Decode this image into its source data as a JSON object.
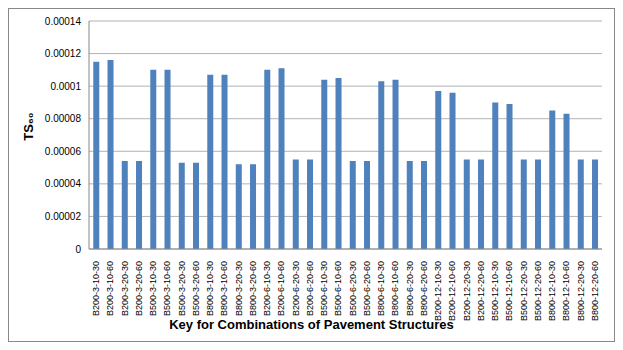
{
  "chart_data": {
    "type": "bar",
    "x_label": "Key for Combinations of Pavement Structures",
    "y_label": "TS₆₀",
    "categories": [
      "B200-3-10-30",
      "B200-3-10-60",
      "B200-3-20-30",
      "B200-3-20-60",
      "B500-3-10-30",
      "B500-3-10-60",
      "B500-3-20-30",
      "B500-3-20-60",
      "B800-3-10-30",
      "B800-3-10-60",
      "B800-3-20-30",
      "B800-3-20-60",
      "B200-6-10-30",
      "B200-6-10-60",
      "B200-6-20-30",
      "B200-6-20-60",
      "B500-6-10-30",
      "B500-6-10-60",
      "B500-6-20-30",
      "B500-6-20-60",
      "B800-6-10-30",
      "B800-6-10-60",
      "B800-6-20-30",
      "B800-6-20-60",
      "B200-12-10-30",
      "B200-12-10-60",
      "B200-12-20-30",
      "B200-12-20-60",
      "B500-12-10-30",
      "B500-12-10-60",
      "B500-12-20-30",
      "B500-12-20-60",
      "B800-12-10-30",
      "B800-12-10-60",
      "B800-12-20-30",
      "B800-12-20-60"
    ],
    "values": [
      0.000115,
      0.000116,
      5.4e-05,
      5.4e-05,
      0.00011,
      0.00011,
      5.3e-05,
      5.3e-05,
      0.000107,
      0.000107,
      5.2e-05,
      5.2e-05,
      0.00011,
      0.000111,
      5.5e-05,
      5.5e-05,
      0.000104,
      0.000105,
      5.4e-05,
      5.4e-05,
      0.000103,
      0.000104,
      5.4e-05,
      5.4e-05,
      9.7e-05,
      9.6e-05,
      5.5e-05,
      5.5e-05,
      9e-05,
      8.9e-05,
      5.5e-05,
      5.5e-05,
      8.5e-05,
      8.3e-05,
      5.5e-05,
      5.5e-05
    ],
    "color": "#4f81bd",
    "ylim": [
      0,
      0.00014
    ],
    "yticks": [
      0,
      2e-05,
      4e-05,
      6e-05,
      8e-05,
      0.0001,
      0.00012,
      0.00014
    ],
    "grid": true
  }
}
